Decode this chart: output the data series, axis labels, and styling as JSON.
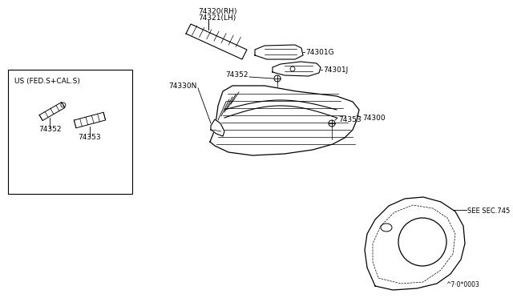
{
  "bg_color": "#ffffff",
  "line_color": "#000000",
  "text_color": "#000000",
  "fig_width": 6.4,
  "fig_height": 3.72,
  "dpi": 100,
  "watermark": "^7·0*0003",
  "box_label": "US (FED.S+CAL.S)",
  "label_74320": "74320(RH)",
  "label_74321": "74321(LH)",
  "label_74352": "74352",
  "label_74330N": "74330N",
  "label_74353": "74353",
  "label_74300": "74300",
  "label_74301J": "74301J",
  "label_74301G": "74301G",
  "label_see_sec": "SEE SEC.745"
}
